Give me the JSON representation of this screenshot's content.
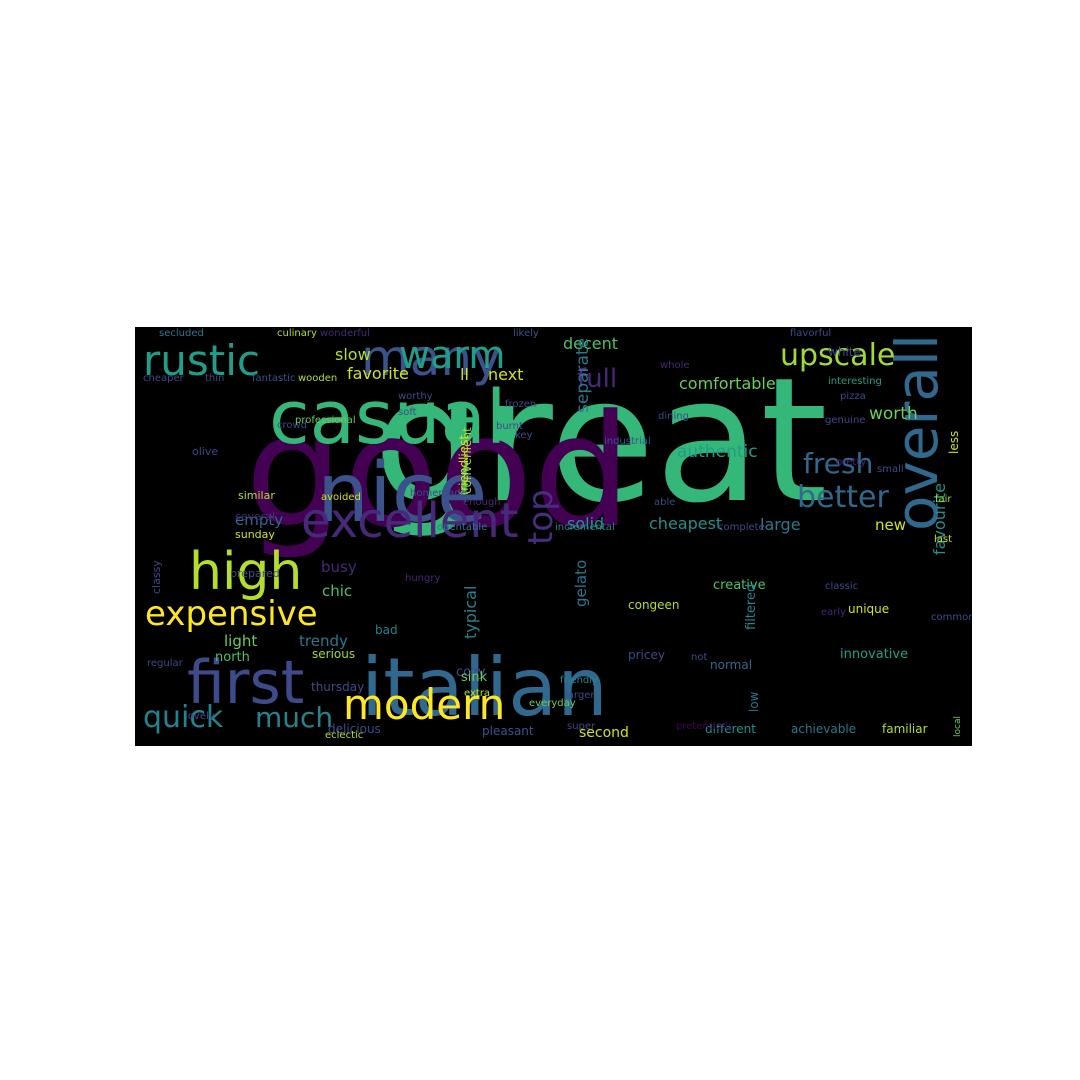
{
  "wordcloud": {
    "words": [
      {
        "text": "great",
        "color": "#35b779"
      },
      {
        "text": "good",
        "color": "#440154"
      },
      {
        "text": "italian",
        "color": "#31688e"
      },
      {
        "text": "nice",
        "color": "#3b528b"
      },
      {
        "text": "casual",
        "color": "#35b779"
      },
      {
        "text": "overall",
        "color": "#31688e"
      },
      {
        "text": "many",
        "color": "#3b528b"
      },
      {
        "text": "excellent",
        "color": "#482878"
      },
      {
        "text": "first",
        "color": "#3e4a89"
      },
      {
        "text": "high",
        "color": "#b5de2b"
      },
      {
        "text": "rustic",
        "color": "#1f9e89"
      },
      {
        "text": "modern",
        "color": "#fde725"
      },
      {
        "text": "expensive",
        "color": "#fde725"
      },
      {
        "text": "warm",
        "color": "#1f9e89"
      },
      {
        "text": "upscale",
        "color": "#a0da39"
      },
      {
        "text": "quick",
        "color": "#26828e"
      },
      {
        "text": "much",
        "color": "#26828e"
      },
      {
        "text": "better",
        "color": "#31688e"
      },
      {
        "text": "fresh",
        "color": "#31688e"
      },
      {
        "text": "full",
        "color": "#482878"
      },
      {
        "text": "top",
        "color": "#472d7b"
      },
      {
        "text": "comfortable",
        "color": "#6ccd5a"
      },
      {
        "text": "favourite",
        "color": "#21918c"
      },
      {
        "text": "decent",
        "color": "#4ac16d"
      },
      {
        "text": "slow",
        "color": "#b5de2b"
      },
      {
        "text": "favorite",
        "color": "#d2e21b"
      },
      {
        "text": "next",
        "color": "#d2e21b"
      },
      {
        "text": "ll",
        "color": "#d2e21b"
      },
      {
        "text": "worth",
        "color": "#6ccd5a"
      },
      {
        "text": "authentic",
        "color": "#1f9e89"
      },
      {
        "text": "separate",
        "color": "#2a788e"
      },
      {
        "text": "solid",
        "color": "#21918c"
      },
      {
        "text": "cheapest",
        "color": "#21918c"
      },
      {
        "text": "large",
        "color": "#2a788e"
      },
      {
        "text": "empty",
        "color": "#31688e"
      },
      {
        "text": "new",
        "color": "#d2e21b"
      },
      {
        "text": "typical",
        "color": "#26828e"
      },
      {
        "text": "gelato",
        "color": "#2a788e"
      },
      {
        "text": "busy",
        "color": "#482878"
      },
      {
        "text": "chic",
        "color": "#4ac16d"
      },
      {
        "text": "creative",
        "color": "#4ac16d"
      },
      {
        "text": "congeen",
        "color": "#b5de2b"
      },
      {
        "text": "unique",
        "color": "#d2e21b"
      },
      {
        "text": "filtered",
        "color": "#26828e"
      },
      {
        "text": "innovative",
        "color": "#1f9e89"
      },
      {
        "text": "light",
        "color": "#6ccd5a"
      },
      {
        "text": "trendy",
        "color": "#2a788e"
      },
      {
        "text": "north",
        "color": "#4ac16d"
      },
      {
        "text": "serious",
        "color": "#a0da39"
      },
      {
        "text": "cozy",
        "color": "#3e4a89"
      },
      {
        "text": "sink",
        "color": "#6ccd5a"
      },
      {
        "text": "pricey",
        "color": "#3e4a89"
      },
      {
        "text": "normal",
        "color": "#31688e"
      },
      {
        "text": "low",
        "color": "#2a788e"
      },
      {
        "text": "thursday",
        "color": "#3e4a89"
      },
      {
        "text": "bad",
        "color": "#26828e"
      },
      {
        "text": "extra",
        "color": "#b5de2b"
      },
      {
        "text": "delicious",
        "color": "#3e4a89"
      },
      {
        "text": "pleasant",
        "color": "#3b528b"
      },
      {
        "text": "second",
        "color": "#d2e21b"
      },
      {
        "text": "different",
        "color": "#21918c"
      },
      {
        "text": "achievable",
        "color": "#2a788e"
      },
      {
        "text": "familiar",
        "color": "#b5de2b"
      },
      {
        "text": "eclectic",
        "color": "#b5de2b"
      },
      {
        "text": "convenient",
        "color": "#a0da39"
      },
      {
        "text": "friendliest",
        "color": "#d2e21b"
      },
      {
        "text": "industrial",
        "color": "#3b528b"
      },
      {
        "text": "crowd",
        "color": "#3e4a89"
      },
      {
        "text": "olive",
        "color": "#3e4a89"
      },
      {
        "text": "similar",
        "color": "#b5de2b"
      },
      {
        "text": "avoided",
        "color": "#d2e21b"
      },
      {
        "text": "several",
        "color": "#482878"
      },
      {
        "text": "sunday",
        "color": "#d2e21b"
      },
      {
        "text": "classy",
        "color": "#3e4a89"
      },
      {
        "text": "prepared",
        "color": "#3b528b"
      },
      {
        "text": "local",
        "color": "#6ccd5a"
      },
      {
        "text": "professional",
        "color": "#6ccd5a"
      },
      {
        "text": "pizza",
        "color": "#3e4a89"
      },
      {
        "text": "whole",
        "color": "#482878"
      },
      {
        "text": "white",
        "color": "#3e4a89"
      },
      {
        "text": "fair",
        "color": "#a0da39"
      },
      {
        "text": "last",
        "color": "#d2e21b"
      },
      {
        "text": "less",
        "color": "#d2e21b"
      },
      {
        "text": "wonderful",
        "color": "#482878"
      },
      {
        "text": "culinary",
        "color": "#b5de2b"
      },
      {
        "text": "fantastic",
        "color": "#3b528b"
      },
      {
        "text": "wooden",
        "color": "#b5de2b"
      },
      {
        "text": "thin",
        "color": "#3e4a89"
      },
      {
        "text": "cheaper",
        "color": "#3e4a89"
      },
      {
        "text": "secluded",
        "color": "#2a788e"
      },
      {
        "text": "likely",
        "color": "#3b528b"
      },
      {
        "text": "flavorful",
        "color": "#3e4a89"
      },
      {
        "text": "interesting",
        "color": "#1f9e89"
      },
      {
        "text": "enough",
        "color": "#482878"
      },
      {
        "text": "opentable",
        "color": "#2a788e"
      },
      {
        "text": "incremental",
        "color": "#26828e"
      },
      {
        "text": "complete",
        "color": "#3e4a89"
      },
      {
        "text": "hungry",
        "color": "#482878"
      },
      {
        "text": "regular",
        "color": "#3e4a89"
      },
      {
        "text": "lovely",
        "color": "#3e4a89"
      },
      {
        "text": "pretentious",
        "color": "#440154"
      },
      {
        "text": "everyday",
        "color": "#6ccd5a"
      },
      {
        "text": "super",
        "color": "#3e4a89"
      },
      {
        "text": "larger",
        "color": "#3e4a89"
      },
      {
        "text": "friendly",
        "color": "#26828e"
      },
      {
        "text": "common",
        "color": "#3e4a89"
      },
      {
        "text": "classic",
        "color": "#3e4a89"
      },
      {
        "text": "early",
        "color": "#482878"
      },
      {
        "text": "pretty",
        "color": "#482878"
      },
      {
        "text": "burnt",
        "color": "#3e4a89"
      },
      {
        "text": "frozen",
        "color": "#3e4a89"
      },
      {
        "text": "soft",
        "color": "#3e4a89"
      },
      {
        "text": "dining",
        "color": "#3e4a89"
      },
      {
        "text": "able",
        "color": "#3e4a89"
      },
      {
        "text": "small",
        "color": "#3e4a89"
      },
      {
        "text": "homemade",
        "color": "#3e4a89"
      },
      {
        "text": "genuine",
        "color": "#3e4a89"
      },
      {
        "text": "not",
        "color": "#3e4a89"
      },
      {
        "text": "key",
        "color": "#3e4a89"
      },
      {
        "text": "worthy",
        "color": "#3e4a89"
      },
      {
        "text": "warm",
        "color": "#3e4a89"
      }
    ]
  }
}
